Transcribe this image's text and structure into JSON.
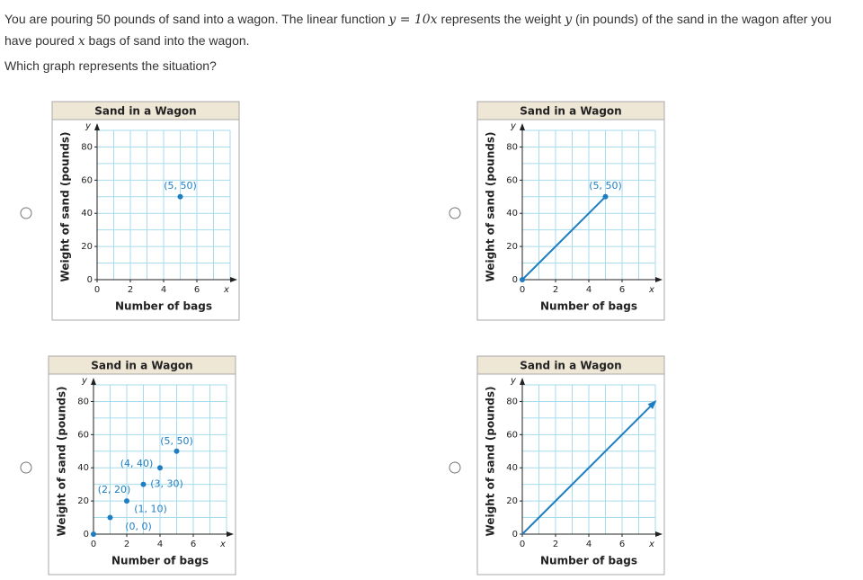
{
  "question": [
    "You are pouring 50 pounds of sand into a wagon. The linear function ",
    "y = 10x",
    " represents the weight ",
    "y",
    " (in pounds) of the sand in the wagon after you have poured ",
    "x",
    " bags of sand into the wagon."
  ],
  "prompt": "Which graph represents the situation?",
  "chart_data": [
    {
      "type": "scatter",
      "title": "Sand in a Wagon",
      "x_label": "Number of bags",
      "y_label": "Weight of sand (pounds)",
      "x_axis_letter": "x",
      "y_axis_letter": "y",
      "x": [
        5
      ],
      "values": [
        50
      ],
      "value_labels": [
        "(5, 50)"
      ],
      "color": "#1f7ec2",
      "xlim": [
        0,
        8
      ],
      "ylim": [
        0,
        90
      ],
      "xticks": [
        0,
        2,
        4,
        6
      ],
      "yticks": [
        0,
        20,
        40,
        60,
        80
      ],
      "xgrid": [
        0,
        1,
        2,
        3,
        4,
        5,
        6,
        7,
        8
      ],
      "ygrid": [
        0,
        10,
        20,
        30,
        40,
        50,
        60,
        70,
        80,
        90
      ],
      "grid_color": "#a6dbec"
    },
    {
      "type": "line",
      "title": "Sand in a Wagon",
      "x_label": "Number of bags",
      "y_label": "Weight of sand (pounds)",
      "x_axis_letter": "x",
      "y_axis_letter": "y",
      "x": [
        0,
        5
      ],
      "values": [
        0,
        50
      ],
      "value_labels": [
        null,
        "(5, 50)"
      ],
      "color": "#1f7ec2",
      "markers": true,
      "arrow_end": false,
      "xlim": [
        0,
        8
      ],
      "ylim": [
        0,
        90
      ],
      "xticks": [
        0,
        2,
        4,
        6
      ],
      "yticks": [
        0,
        20,
        40,
        60,
        80
      ],
      "xgrid": [
        0,
        1,
        2,
        3,
        4,
        5,
        6,
        7,
        8
      ],
      "ygrid": [
        0,
        10,
        20,
        30,
        40,
        50,
        60,
        70,
        80,
        90
      ],
      "grid_color": "#a6dbec"
    },
    {
      "type": "scatter",
      "title": "Sand in a Wagon",
      "x_label": "Number of bags",
      "y_label": "Weight of sand (pounds)",
      "x_axis_letter": "x",
      "y_axis_letter": "y",
      "x": [
        0,
        1,
        2,
        3,
        4,
        5
      ],
      "values": [
        0,
        10,
        20,
        30,
        40,
        50
      ],
      "value_labels": [
        "(0, 0)",
        "(1, 10)",
        "(2, 20)",
        "(3, 30)",
        "(4, 40)",
        "(5, 50)"
      ],
      "color": "#1f7ec2",
      "xlim": [
        0,
        8
      ],
      "ylim": [
        0,
        90
      ],
      "xticks": [
        0,
        2,
        4,
        6
      ],
      "yticks": [
        0,
        20,
        40,
        60,
        80
      ],
      "xgrid": [
        0,
        1,
        2,
        3,
        4,
        5,
        6,
        7,
        8
      ],
      "ygrid": [
        0,
        10,
        20,
        30,
        40,
        50,
        60,
        70,
        80,
        90
      ],
      "grid_color": "#a6dbec"
    },
    {
      "type": "line",
      "title": "Sand in a Wagon",
      "x_label": "Number of bags",
      "y_label": "Weight of sand (pounds)",
      "x_axis_letter": "x",
      "y_axis_letter": "y",
      "x": [
        0,
        8
      ],
      "values": [
        0,
        80
      ],
      "color": "#1f7ec2",
      "markers": false,
      "arrow_end": true,
      "xlim": [
        0,
        8
      ],
      "ylim": [
        0,
        90
      ],
      "xticks": [
        0,
        2,
        4,
        6
      ],
      "yticks": [
        0,
        20,
        40,
        60,
        80
      ],
      "xgrid": [
        0,
        1,
        2,
        3,
        4,
        5,
        6,
        7,
        8
      ],
      "ygrid": [
        0,
        10,
        20,
        30,
        40,
        50,
        60,
        70,
        80,
        90
      ],
      "grid_color": "#a6dbec"
    }
  ]
}
